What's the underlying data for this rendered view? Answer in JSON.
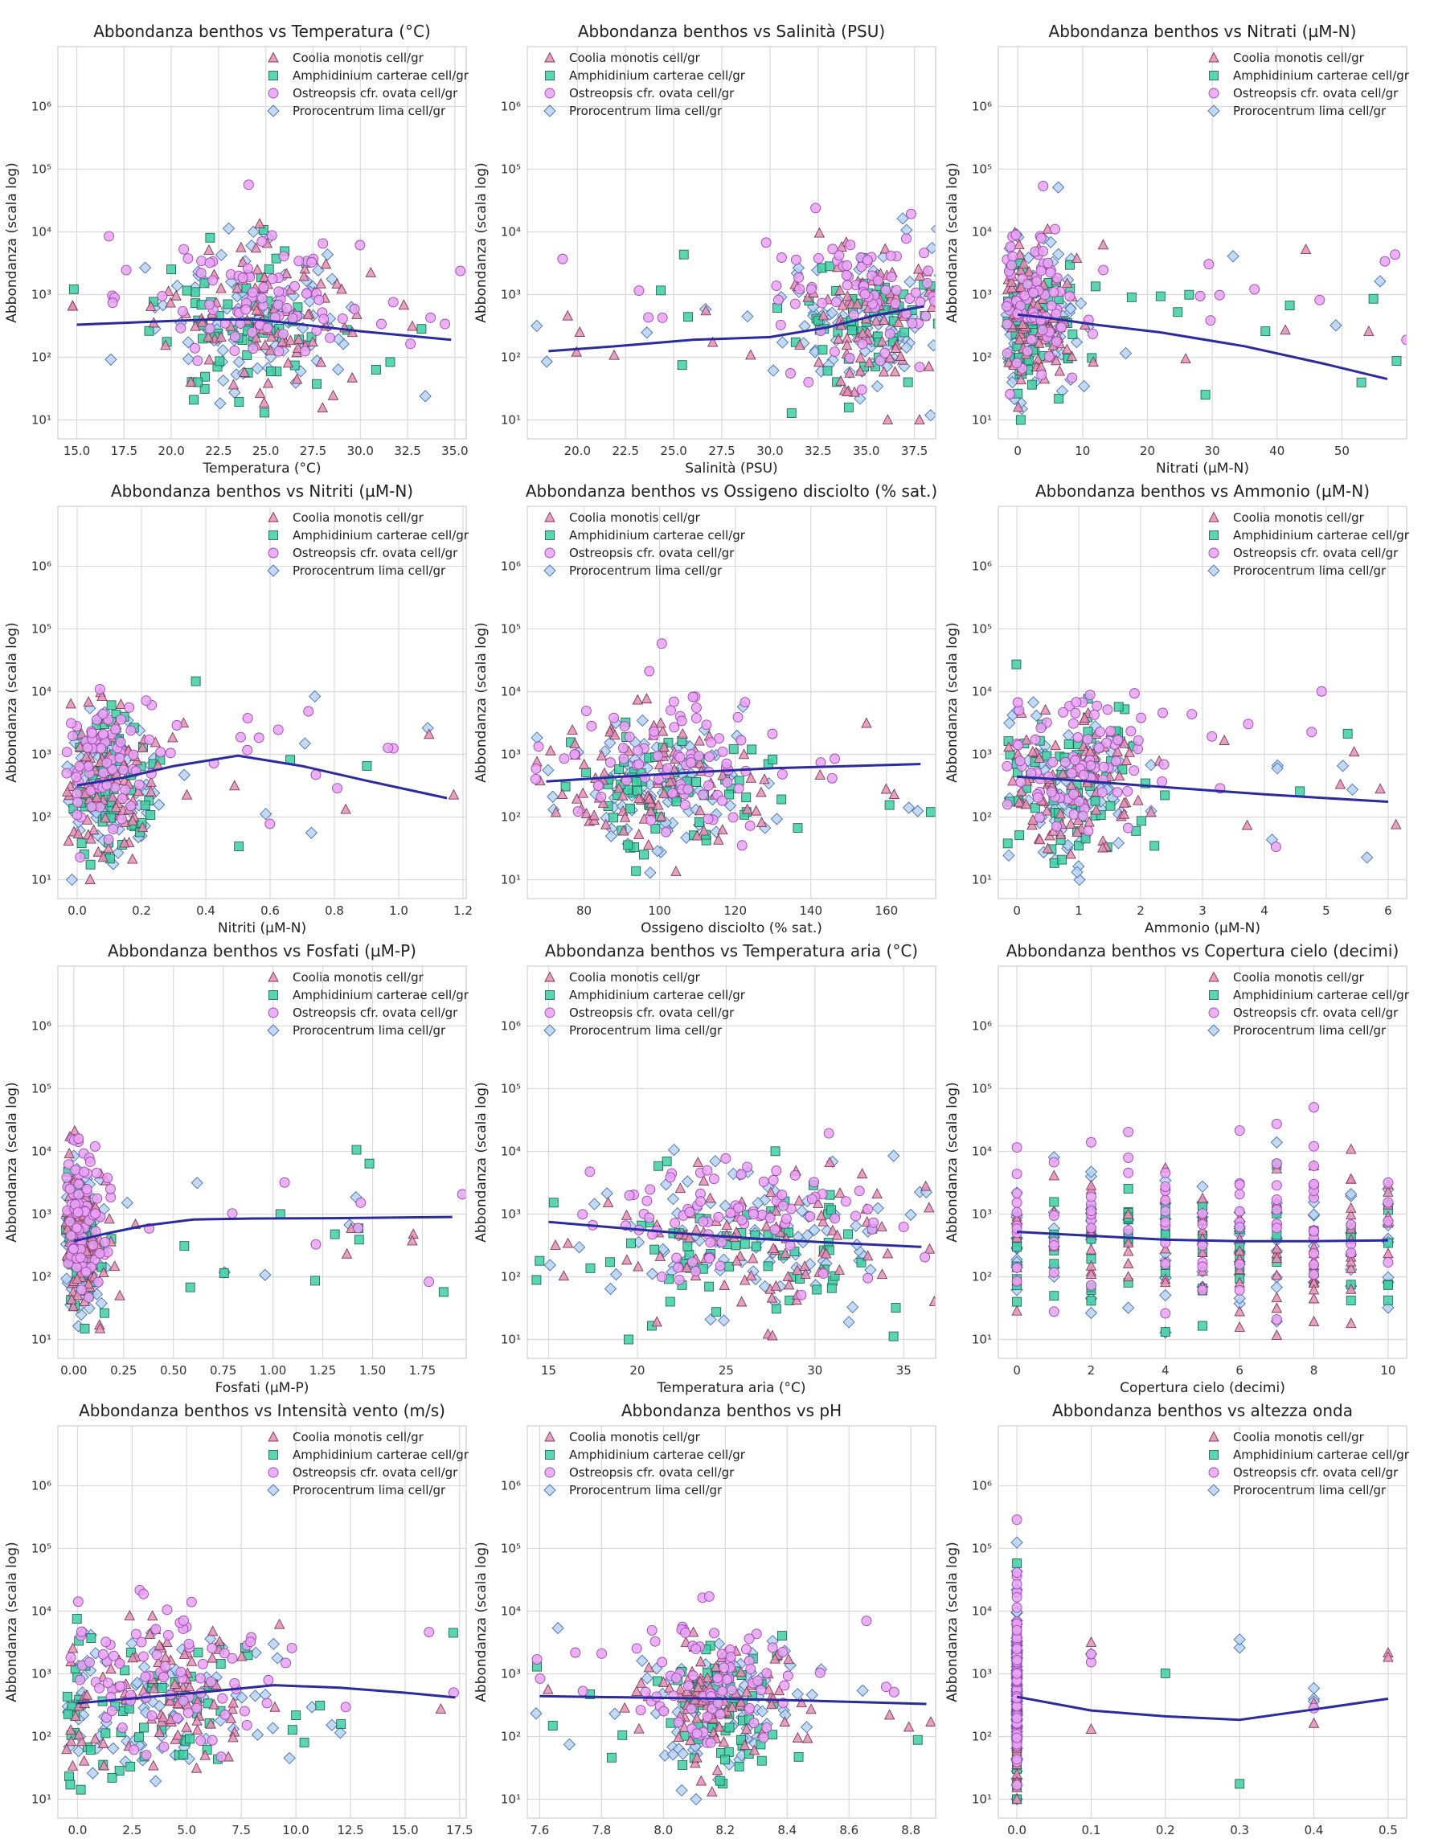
{
  "figure": {
    "ylabel": "Abbondanza (scala log)",
    "title_prefix": "Abbondanza benthos vs "
  },
  "species": [
    {
      "name": "Coolia monotis cell/gr",
      "marker": "triangle",
      "fill": "#e48fb6",
      "stroke": "#7a3b5a"
    },
    {
      "name": "Amphidinium carterae cell/gr",
      "marker": "square",
      "fill": "#3fcfa5",
      "stroke": "#1f6b55"
    },
    {
      "name": "Ostreopsis cfr. ovata cell/gr",
      "marker": "circle",
      "fill": "#e7a3f2",
      "stroke": "#9a44b3"
    },
    {
      "name": "Prorocentrum lima cell/gr",
      "marker": "diamond",
      "fill": "#b7d3f5",
      "stroke": "#4a6fa8"
    }
  ],
  "chart_data": [
    {
      "type": "scatter",
      "title": "Abbondanza benthos vs Temperatura (°C)",
      "xlabel": "Temperatura (°C)",
      "ylabel": "Abbondanza (scala log)",
      "yscale": "log",
      "xlim": [
        14.0,
        35.6
      ],
      "ylim": [
        5,
        9000000
      ],
      "xticks": [
        15.0,
        17.5,
        20.0,
        22.5,
        25.0,
        27.5,
        30.0,
        32.5,
        35.0
      ],
      "xtick_labels": [
        "15.0",
        "17.5",
        "20.0",
        "22.5",
        "25.0",
        "27.5",
        "30.0",
        "32.5",
        "35.0"
      ],
      "yticks": [
        10,
        100,
        1000,
        10000,
        100000,
        1000000
      ],
      "ytick_labels": [
        "10¹",
        "10²",
        "10³",
        "10⁴",
        "10⁵",
        "10⁶"
      ],
      "legend": "top-right",
      "grid": true,
      "trend": {
        "x": [
          15.0,
          19.0,
          22.0,
          24.5,
          27.0,
          30.0,
          34.8
        ],
        "y": [
          330,
          370,
          400,
          400,
          330,
          260,
          190
        ]
      },
      "cloud": {
        "x_center": 24.5,
        "x_spread": 2.6,
        "y_log_center": 2.6,
        "y_log_spread": 0.55
      }
    },
    {
      "type": "scatter",
      "title": "Abbondanza benthos vs Salinità (PSU)",
      "xlabel": "Salinità (PSU)",
      "ylabel": "Abbondanza (scala log)",
      "yscale": "log",
      "xlim": [
        17.4,
        38.6
      ],
      "ylim": [
        5,
        9000000
      ],
      "xticks": [
        20.0,
        22.5,
        25.0,
        27.5,
        30.0,
        32.5,
        35.0,
        37.5
      ],
      "xtick_labels": [
        "20.0",
        "22.5",
        "25.0",
        "27.5",
        "30.0",
        "32.5",
        "35.0",
        "37.5"
      ],
      "yticks": [
        10,
        100,
        1000,
        10000,
        100000,
        1000000
      ],
      "ytick_labels": [
        "10¹",
        "10²",
        "10³",
        "10⁴",
        "10⁵",
        "10⁶"
      ],
      "legend": "top-left",
      "grid": true,
      "trend": {
        "x": [
          18.5,
          22.0,
          26.0,
          30.0,
          33.0,
          35.5,
          38.0
        ],
        "y": [
          125,
          150,
          190,
          210,
          300,
          470,
          650
        ]
      },
      "cloud": {
        "x_center": 35.5,
        "x_spread": 2.2,
        "y_log_center": 2.6,
        "y_log_spread": 0.6
      }
    },
    {
      "type": "scatter",
      "title": "Abbondanza benthos vs Nitrati (µM-N)",
      "xlabel": "Nitrati (µM-N)",
      "ylabel": "Abbondanza (scala log)",
      "yscale": "log",
      "xlim": [
        -3,
        60
      ],
      "ylim": [
        5,
        9000000
      ],
      "xticks": [
        0,
        10,
        20,
        30,
        40,
        50
      ],
      "xtick_labels": [
        "0",
        "10",
        "20",
        "30",
        "40",
        "50"
      ],
      "yticks": [
        10,
        100,
        1000,
        10000,
        100000,
        1000000
      ],
      "ytick_labels": [
        "10¹",
        "10²",
        "10³",
        "10⁴",
        "10⁵",
        "10⁶"
      ],
      "legend": "top-right",
      "grid": true,
      "trend": {
        "x": [
          0,
          5,
          12,
          22,
          35,
          47,
          57
        ],
        "y": [
          480,
          420,
          330,
          250,
          150,
          80,
          45
        ]
      },
      "cloud": {
        "x_center": 2.5,
        "x_spread": 3.5,
        "y_log_center": 2.6,
        "y_log_spread": 0.6
      }
    },
    {
      "type": "scatter",
      "title": "Abbondanza benthos vs Nitriti (µM-N)",
      "xlabel": "Nitriti (µM-N)",
      "ylabel": "Abbondanza (scala log)",
      "yscale": "log",
      "xlim": [
        -0.06,
        1.21
      ],
      "ylim": [
        5,
        9000000
      ],
      "xticks": [
        0.0,
        0.2,
        0.4,
        0.6,
        0.8,
        1.0,
        1.2
      ],
      "xtick_labels": [
        "0.0",
        "0.2",
        "0.4",
        "0.6",
        "0.8",
        "1.0",
        "1.2"
      ],
      "yticks": [
        10,
        100,
        1000,
        10000,
        100000,
        1000000
      ],
      "ytick_labels": [
        "10¹",
        "10²",
        "10³",
        "10⁴",
        "10⁵",
        "10⁶"
      ],
      "legend": "top-right",
      "grid": true,
      "trend": {
        "x": [
          0.0,
          0.15,
          0.3,
          0.5,
          0.7,
          0.9,
          1.15
        ],
        "y": [
          320,
          430,
          650,
          950,
          650,
          380,
          200
        ]
      },
      "cloud": {
        "x_center": 0.09,
        "x_spread": 0.08,
        "y_log_center": 2.6,
        "y_log_spread": 0.6
      }
    },
    {
      "type": "scatter",
      "title": "Abbondanza benthos vs Ossigeno disciolto (% sat.)",
      "xlabel": "Ossigeno disciolto (% sat.)",
      "ylabel": "Abbondanza (scala log)",
      "yscale": "log",
      "xlim": [
        65,
        173
      ],
      "ylim": [
        5,
        9000000
      ],
      "xticks": [
        80,
        100,
        120,
        140,
        160
      ],
      "xtick_labels": [
        "80",
        "100",
        "120",
        "140",
        "160"
      ],
      "yticks": [
        10,
        100,
        1000,
        10000,
        100000,
        1000000
      ],
      "ytick_labels": [
        "10¹",
        "10²",
        "10³",
        "10⁴",
        "10⁵",
        "10⁶"
      ],
      "legend": "top-left",
      "grid": true,
      "trend": {
        "x": [
          70,
          90,
          110,
          130,
          150,
          169
        ],
        "y": [
          370,
          440,
          520,
          600,
          650,
          700
        ]
      },
      "cloud": {
        "x_center": 100,
        "x_spread": 13,
        "y_log_center": 2.6,
        "y_log_spread": 0.55
      }
    },
    {
      "type": "scatter",
      "title": "Abbondanza benthos vs Ammonio (µM-N)",
      "xlabel": "Ammonio (µM-N)",
      "ylabel": "Abbondanza (scala log)",
      "yscale": "log",
      "xlim": [
        -0.3,
        6.3
      ],
      "ylim": [
        5,
        9000000
      ],
      "xticks": [
        0,
        1,
        2,
        3,
        4,
        5,
        6
      ],
      "xtick_labels": [
        "0",
        "1",
        "2",
        "3",
        "4",
        "5",
        "6"
      ],
      "yticks": [
        10,
        100,
        1000,
        10000,
        100000,
        1000000
      ],
      "ytick_labels": [
        "10¹",
        "10²",
        "10³",
        "10⁴",
        "10⁵",
        "10⁶"
      ],
      "legend": "top-right",
      "grid": true,
      "trend": {
        "x": [
          0,
          1,
          2,
          3,
          4,
          5,
          6
        ],
        "y": [
          440,
          380,
          320,
          270,
          230,
          200,
          175
        ]
      },
      "cloud": {
        "x_center": 0.9,
        "x_spread": 0.6,
        "y_log_center": 2.6,
        "y_log_spread": 0.6
      }
    },
    {
      "type": "scatter",
      "title": "Abbondanza benthos vs Fosfati (µM-P)",
      "xlabel": "Fosfati (µM-P)",
      "ylabel": "Abbondanza (scala log)",
      "yscale": "log",
      "xlim": [
        -0.08,
        1.97
      ],
      "ylim": [
        5,
        9000000
      ],
      "xticks": [
        0.0,
        0.25,
        0.5,
        0.75,
        1.0,
        1.25,
        1.5,
        1.75
      ],
      "xtick_labels": [
        "0.00",
        "0.25",
        "0.50",
        "0.75",
        "1.00",
        "1.25",
        "1.50",
        "1.75"
      ],
      "yticks": [
        10,
        100,
        1000,
        10000,
        100000,
        1000000
      ],
      "ytick_labels": [
        "10¹",
        "10²",
        "10³",
        "10⁴",
        "10⁵",
        "10⁶"
      ],
      "legend": "top-right",
      "grid": true,
      "trend": {
        "x": [
          0.0,
          0.15,
          0.35,
          0.6,
          0.9,
          1.3,
          1.9
        ],
        "y": [
          370,
          480,
          650,
          820,
          850,
          860,
          900
        ]
      },
      "cloud": {
        "x_center": 0.05,
        "x_spread": 0.06,
        "y_log_center": 2.6,
        "y_log_spread": 0.6
      }
    },
    {
      "type": "scatter",
      "title": "Abbondanza benthos vs Temperatura aria (°C)",
      "xlabel": "Temperatura aria (°C)",
      "ylabel": "Abbondanza (scala log)",
      "yscale": "log",
      "xlim": [
        13.8,
        36.8
      ],
      "ylim": [
        5,
        9000000
      ],
      "xticks": [
        15,
        20,
        25,
        30,
        35
      ],
      "xtick_labels": [
        "15",
        "20",
        "25",
        "30",
        "35"
      ],
      "yticks": [
        10,
        100,
        1000,
        10000,
        100000,
        1000000
      ],
      "ytick_labels": [
        "10¹",
        "10²",
        "10³",
        "10⁴",
        "10⁵",
        "10⁶"
      ],
      "legend": "top-left",
      "grid": true,
      "trend": {
        "x": [
          15,
          19,
          23,
          27,
          31,
          36
        ],
        "y": [
          750,
          600,
          480,
          400,
          350,
          300
        ]
      },
      "cloud": {
        "x_center": 26,
        "x_spread": 4,
        "y_log_center": 2.6,
        "y_log_spread": 0.55
      }
    },
    {
      "type": "scatter",
      "title": "Abbondanza benthos vs Copertura cielo (decimi)",
      "xlabel": "Copertura cielo (decimi)",
      "ylabel": "Abbondanza (scala log)",
      "yscale": "log",
      "xlim": [
        -0.5,
        10.5
      ],
      "ylim": [
        5,
        9000000
      ],
      "xticks": [
        0,
        2,
        4,
        6,
        8,
        10
      ],
      "xtick_labels": [
        "0",
        "2",
        "4",
        "6",
        "8",
        "10"
      ],
      "yticks": [
        10,
        100,
        1000,
        10000,
        100000,
        1000000
      ],
      "ytick_labels": [
        "10¹",
        "10²",
        "10³",
        "10⁴",
        "10⁵",
        "10⁶"
      ],
      "legend": "top-right",
      "grid": true,
      "trend": {
        "x": [
          0,
          2,
          4,
          6,
          8,
          10
        ],
        "y": [
          520,
          450,
          390,
          370,
          370,
          380
        ]
      },
      "cloud": {
        "x_center": 5,
        "x_spread": 3.2,
        "y_log_center": 2.6,
        "y_log_spread": 0.6,
        "discrete": true
      }
    },
    {
      "type": "scatter",
      "title": "Abbondanza benthos vs Intensità vento (m/s)",
      "xlabel": "Intensità vento (m/s)",
      "ylabel": "Abbondanza (scala log)",
      "yscale": "log",
      "xlim": [
        -0.9,
        17.8
      ],
      "ylim": [
        5,
        9000000
      ],
      "xticks": [
        0.0,
        2.5,
        5.0,
        7.5,
        10.0,
        12.5,
        15.0,
        17.5
      ],
      "xtick_labels": [
        "0.0",
        "2.5",
        "5.0",
        "7.5",
        "10.0",
        "12.5",
        "15.0",
        "17.5"
      ],
      "yticks": [
        10,
        100,
        1000,
        10000,
        100000,
        1000000
      ],
      "ytick_labels": [
        "10¹",
        "10²",
        "10³",
        "10⁴",
        "10⁵",
        "10⁶"
      ],
      "legend": "top-right",
      "grid": true,
      "trend": {
        "x": [
          0,
          3,
          6,
          9,
          12,
          15,
          17.3
        ],
        "y": [
          340,
          420,
          520,
          660,
          600,
          500,
          420
        ]
      },
      "cloud": {
        "x_center": 3.5,
        "x_spread": 3,
        "y_log_center": 2.6,
        "y_log_spread": 0.6
      }
    },
    {
      "type": "scatter",
      "title": "Abbondanza benthos vs pH",
      "xlabel": "pH",
      "ylabel": "Abbondanza (scala log)",
      "yscale": "log",
      "xlim": [
        7.56,
        8.88
      ],
      "ylim": [
        5,
        9000000
      ],
      "xticks": [
        7.6,
        7.8,
        8.0,
        8.2,
        8.4,
        8.6,
        8.8
      ],
      "xtick_labels": [
        "7.6",
        "7.8",
        "8.0",
        "8.2",
        "8.4",
        "8.6",
        "8.8"
      ],
      "yticks": [
        10,
        100,
        1000,
        10000,
        100000,
        1000000
      ],
      "ytick_labels": [
        "10¹",
        "10²",
        "10³",
        "10⁴",
        "10⁵",
        "10⁶"
      ],
      "legend": "top-left",
      "grid": true,
      "trend": {
        "x": [
          7.6,
          7.9,
          8.2,
          8.5,
          8.85
        ],
        "y": [
          440,
          420,
          400,
          370,
          330
        ]
      },
      "cloud": {
        "x_center": 8.18,
        "x_spread": 0.12,
        "y_log_center": 2.6,
        "y_log_spread": 0.55
      }
    },
    {
      "type": "scatter",
      "title": "Abbondanza benthos vs altezza onda",
      "xlabel": "altezza onda",
      "ylabel": "Abbondanza (scala log)",
      "yscale": "log",
      "xlim": [
        -0.025,
        0.525
      ],
      "ylim": [
        5,
        9000000
      ],
      "xticks": [
        0.0,
        0.1,
        0.2,
        0.3,
        0.4,
        0.5
      ],
      "xtick_labels": [
        "0.0",
        "0.1",
        "0.2",
        "0.3",
        "0.4",
        "0.5"
      ],
      "yticks": [
        10,
        100,
        1000,
        10000,
        100000,
        1000000
      ],
      "ytick_labels": [
        "10¹",
        "10²",
        "10³",
        "10⁴",
        "10⁵",
        "10⁶"
      ],
      "legend": "top-right",
      "grid": true,
      "trend": {
        "x": [
          0.0,
          0.1,
          0.2,
          0.3,
          0.4,
          0.5
        ],
        "y": [
          430,
          260,
          210,
          185,
          270,
          400
        ]
      },
      "cloud": {
        "x_center": 0.0,
        "x_spread": 0.0,
        "y_log_center": 2.6,
        "y_log_spread": 0.7,
        "atzero": true
      }
    }
  ]
}
